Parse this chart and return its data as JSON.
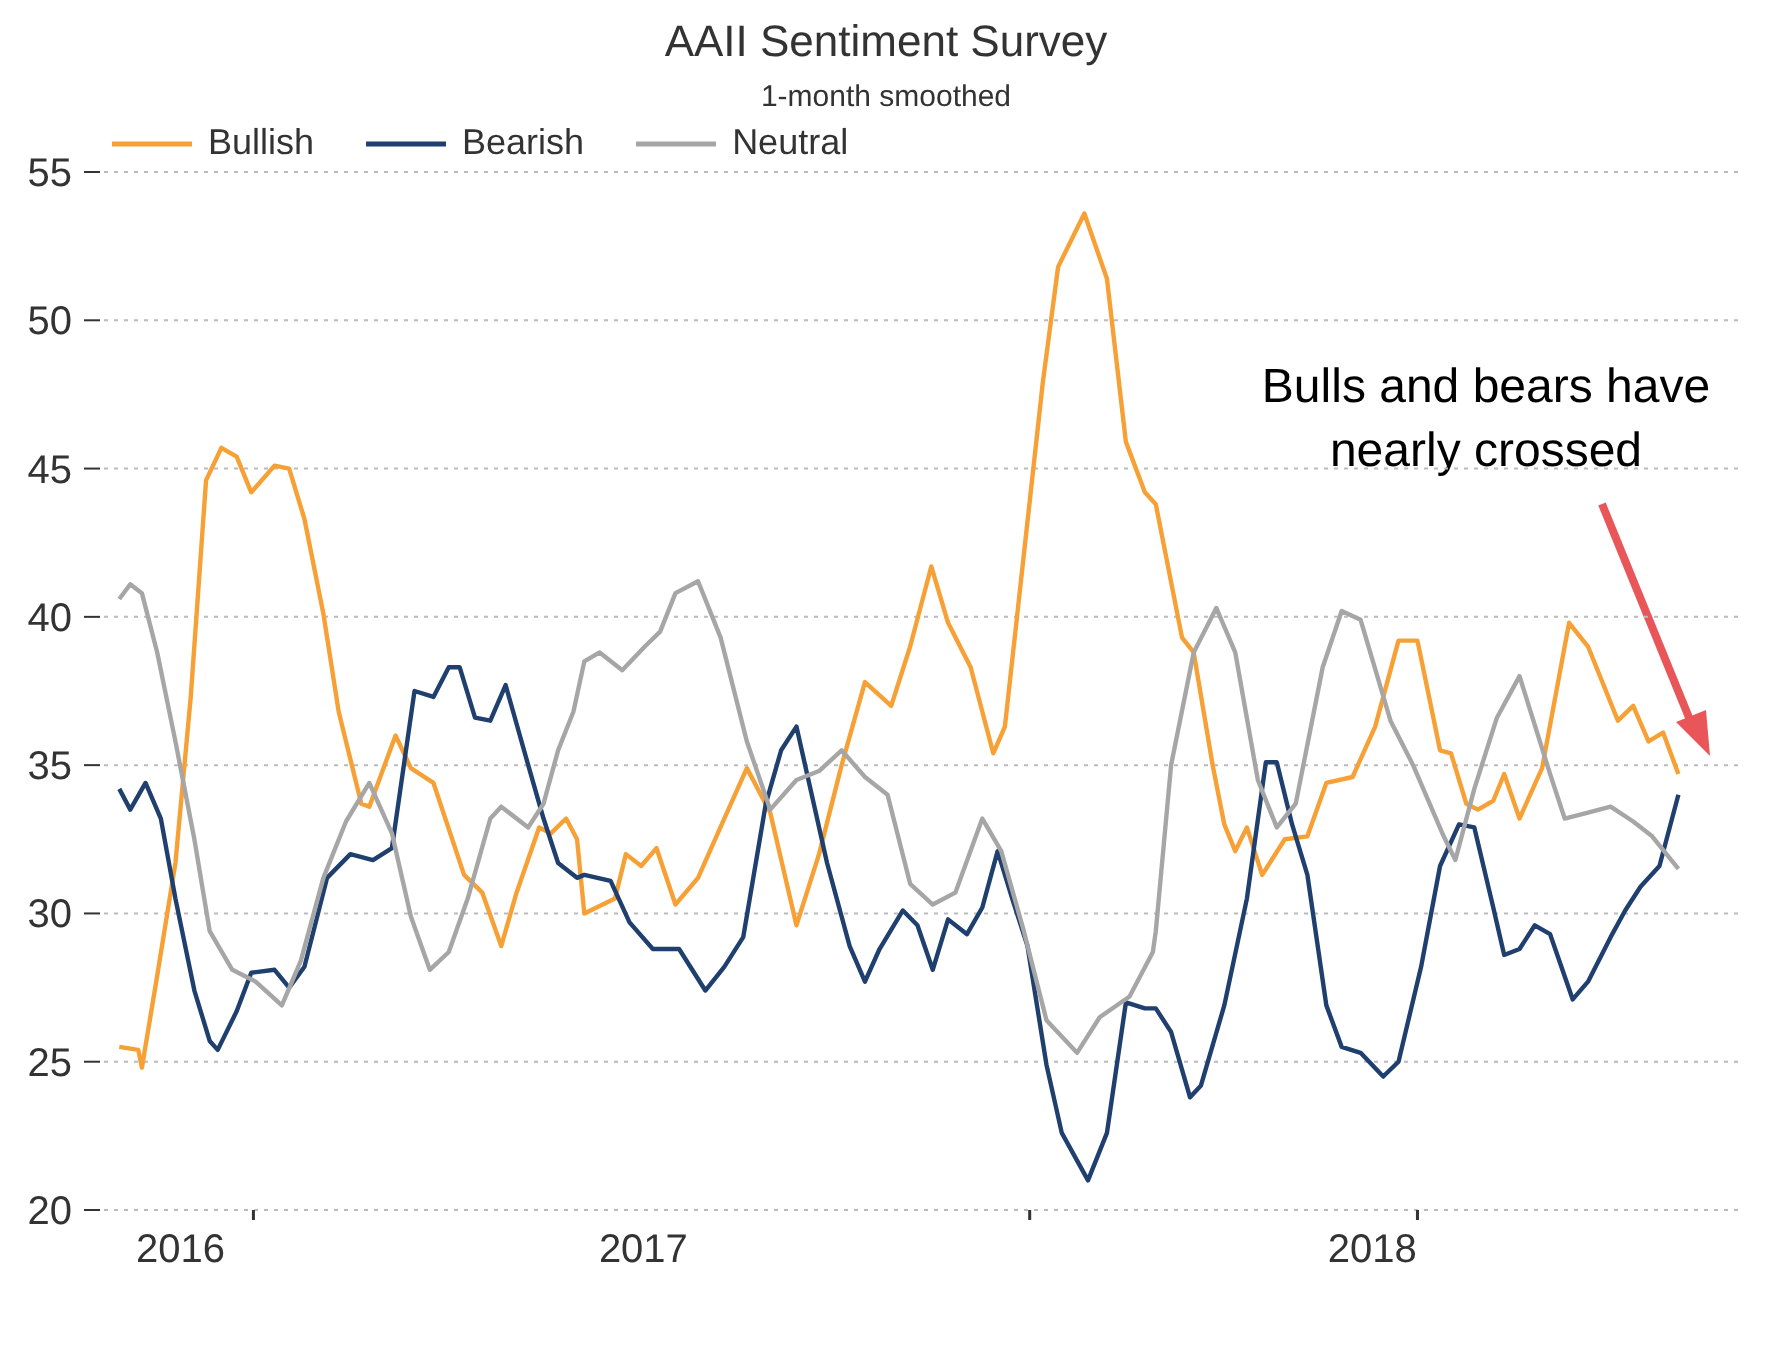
{
  "chart_data": {
    "type": "line",
    "title": "AAII Sentiment Survey",
    "subtitle": "1-month smoothed",
    "xlim": [
      2016.26,
      2018.51
    ],
    "xticks": [
      {
        "value": 2016.365,
        "label": "2016"
      },
      {
        "value": 2016.465,
        "label": null
      },
      {
        "value": 2017,
        "label": "2017"
      },
      {
        "value": 2017.53,
        "label": null
      },
      {
        "value": 2018,
        "label": "2018"
      },
      {
        "value": 2018.062,
        "label": null
      }
    ],
    "ylim": [
      20,
      55
    ],
    "yticks": [
      20,
      25,
      30,
      35,
      40,
      45,
      50,
      55
    ],
    "grid": "y",
    "legend": "top left",
    "line_style": "solid",
    "marker": "none",
    "annotations": [
      "Bulls and bears have nearly crossed"
    ],
    "series": [
      {
        "name": "Bullish",
        "color": "#f7a035",
        "x": [
          2016.281,
          2016.307,
          2016.312,
          2016.333,
          2016.358,
          2016.379,
          2016.4,
          2016.421,
          2016.442,
          2016.462,
          2016.494,
          2016.514,
          2016.535,
          2016.561,
          2016.582,
          2016.613,
          2016.624,
          2016.66,
          2016.681,
          2016.712,
          2016.754,
          2016.779,
          2016.805,
          2016.826,
          2016.857,
          2016.873,
          2016.894,
          2016.909,
          2016.919,
          2016.961,
          2016.976,
          2016.997,
          2017.018,
          2017.044,
          2017.075,
          2017.111,
          2017.142,
          2017.174,
          2017.21,
          2017.241,
          2017.272,
          2017.304,
          2017.34,
          2017.366,
          2017.395,
          2017.418,
          2017.449,
          2017.48,
          2017.496,
          2017.522,
          2017.548,
          2017.569,
          2017.605,
          2017.636,
          2017.662,
          2017.688,
          2017.703,
          2017.739,
          2017.755,
          2017.781,
          2017.797,
          2017.812,
          2017.828,
          2017.849,
          2017.88,
          2017.911,
          2017.937,
          2017.973,
          2018.004,
          2018.036,
          2018.062,
          2018.093,
          2018.108,
          2018.129,
          2018.145,
          2018.166,
          2018.181,
          2018.202,
          2018.233,
          2018.27,
          2018.296,
          2018.337,
          2018.358,
          2018.379,
          2018.399,
          2018.42
        ],
        "values": [
          25.5,
          25.4,
          24.8,
          27.9,
          31.7,
          37.3,
          44.6,
          45.7,
          45.4,
          44.2,
          45.1,
          45.0,
          43.3,
          40.1,
          36.8,
          33.7,
          33.6,
          36.0,
          34.9,
          34.4,
          31.3,
          30.7,
          28.9,
          30.7,
          32.9,
          32.7,
          33.2,
          32.5,
          30.0,
          30.5,
          32.0,
          31.6,
          32.2,
          30.3,
          31.2,
          33.2,
          34.9,
          33.4,
          29.6,
          32.0,
          35.0,
          37.8,
          37.0,
          39.0,
          41.7,
          39.8,
          38.3,
          35.4,
          36.3,
          42.1,
          47.9,
          51.8,
          53.6,
          51.4,
          45.9,
          44.2,
          43.8,
          39.3,
          38.8,
          35.0,
          33.0,
          32.1,
          32.9,
          31.3,
          32.5,
          32.6,
          34.4,
          34.6,
          36.3,
          39.2,
          39.2,
          35.5,
          35.4,
          33.7,
          33.5,
          33.8,
          34.7,
          33.2,
          34.9,
          39.8,
          39.0,
          36.5,
          37.0,
          35.8,
          36.1,
          34.7
        ]
      },
      {
        "name": "Bearish",
        "color": "#1f3f6e",
        "x": [
          2016.281,
          2016.296,
          2016.317,
          2016.338,
          2016.358,
          2016.384,
          2016.405,
          2016.416,
          2016.442,
          2016.462,
          2016.494,
          2016.514,
          2016.535,
          2016.566,
          2016.598,
          2016.629,
          2016.655,
          2016.686,
          2016.712,
          2016.733,
          2016.748,
          2016.769,
          2016.79,
          2016.811,
          2016.842,
          2016.863,
          2016.883,
          2016.909,
          2016.919,
          2016.955,
          2016.981,
          2017.013,
          2017.049,
          2017.085,
          2017.111,
          2017.137,
          2017.168,
          2017.189,
          2017.21,
          2017.231,
          2017.252,
          2017.283,
          2017.304,
          2017.324,
          2017.356,
          2017.376,
          2017.397,
          2017.418,
          2017.444,
          2017.465,
          2017.486,
          2017.506,
          2017.527,
          2017.553,
          2017.574,
          2017.61,
          2017.636,
          2017.662,
          2017.688,
          2017.703,
          2017.724,
          2017.75,
          2017.765,
          2017.797,
          2017.828,
          2017.854,
          2017.869,
          2017.89,
          2017.911,
          2017.937,
          2017.958,
          2017.984,
          2018.015,
          2018.036,
          2018.067,
          2018.093,
          2018.119,
          2018.14,
          2018.166,
          2018.181,
          2018.202,
          2018.223,
          2018.244,
          2018.275,
          2018.296,
          2018.327,
          2018.347,
          2018.368,
          2018.394,
          2018.42
        ],
        "values": [
          34.2,
          33.5,
          34.4,
          33.2,
          30.5,
          27.4,
          25.7,
          25.4,
          26.7,
          28.0,
          28.1,
          27.5,
          28.2,
          31.2,
          32.0,
          31.8,
          32.2,
          37.5,
          37.3,
          38.3,
          38.3,
          36.6,
          36.5,
          37.7,
          35.0,
          33.2,
          31.7,
          31.2,
          31.3,
          31.1,
          29.7,
          28.8,
          28.8,
          27.4,
          28.2,
          29.2,
          33.7,
          35.5,
          36.3,
          34.0,
          31.7,
          28.9,
          27.7,
          28.8,
          30.1,
          29.6,
          28.1,
          29.8,
          29.3,
          30.2,
          32.1,
          30.5,
          28.9,
          24.9,
          22.6,
          21.0,
          22.6,
          27.0,
          26.8,
          26.8,
          26.0,
          23.8,
          24.2,
          26.9,
          30.5,
          35.1,
          35.1,
          33.0,
          31.3,
          26.9,
          25.5,
          25.3,
          24.5,
          25.0,
          28.2,
          31.6,
          33.0,
          32.9,
          30.2,
          28.6,
          28.8,
          29.6,
          29.3,
          27.1,
          27.7,
          29.2,
          30.1,
          30.9,
          31.6,
          34.0
        ]
      },
      {
        "name": "Neutral",
        "color": "#a6a6a6",
        "x": [
          2016.281,
          2016.296,
          2016.312,
          2016.333,
          2016.358,
          2016.384,
          2016.405,
          2016.436,
          2016.468,
          2016.504,
          2016.53,
          2016.561,
          2016.592,
          2016.624,
          2016.655,
          2016.681,
          2016.707,
          2016.733,
          2016.759,
          2016.79,
          2016.805,
          2016.842,
          2016.863,
          2016.883,
          2016.904,
          2016.919,
          2016.94,
          2016.971,
          2017.002,
          2017.023,
          2017.044,
          2017.075,
          2017.106,
          2017.142,
          2017.174,
          2017.21,
          2017.241,
          2017.272,
          2017.304,
          2017.335,
          2017.366,
          2017.397,
          2017.428,
          2017.465,
          2017.491,
          2017.522,
          2017.553,
          2017.595,
          2017.626,
          2017.667,
          2017.699,
          2017.703,
          2017.724,
          2017.755,
          2017.786,
          2017.812,
          2017.843,
          2017.869,
          2017.895,
          2017.932,
          2017.958,
          2017.984,
          2018.025,
          2018.056,
          2018.098,
          2018.114,
          2018.14,
          2018.171,
          2018.202,
          2018.244,
          2018.264,
          2018.296,
          2018.327,
          2018.358,
          2018.384,
          2018.42
        ],
        "values": [
          40.6,
          41.1,
          40.8,
          38.8,
          35.8,
          32.5,
          29.4,
          28.1,
          27.7,
          26.9,
          28.4,
          31.2,
          33.1,
          34.4,
          32.7,
          29.9,
          28.1,
          28.7,
          30.5,
          33.2,
          33.6,
          32.9,
          33.7,
          35.5,
          36.8,
          38.5,
          38.8,
          38.2,
          39.0,
          39.5,
          40.8,
          41.2,
          39.3,
          35.8,
          33.5,
          34.5,
          34.8,
          35.5,
          34.6,
          34.0,
          31.0,
          30.3,
          30.7,
          33.2,
          32.1,
          29.4,
          26.4,
          25.3,
          26.5,
          27.2,
          28.7,
          29.4,
          35.0,
          38.8,
          40.3,
          38.8,
          34.5,
          32.9,
          33.7,
          38.3,
          40.2,
          39.9,
          36.5,
          35.0,
          32.6,
          31.8,
          34.2,
          36.6,
          38.0,
          34.7,
          33.2,
          33.4,
          33.6,
          33.1,
          32.6,
          31.5
        ]
      }
    ]
  }
}
